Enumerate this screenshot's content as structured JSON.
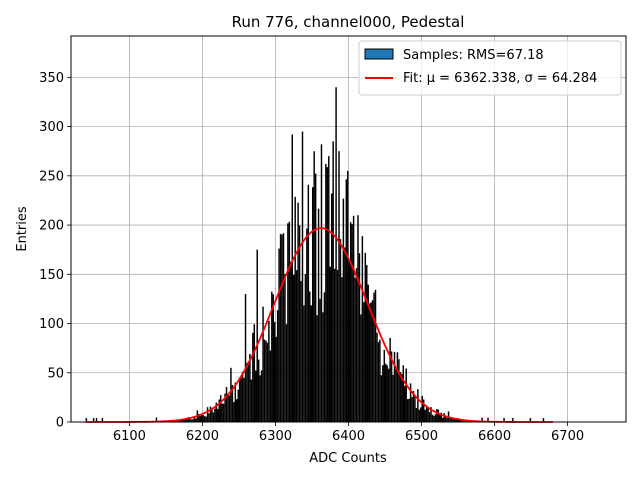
{
  "chart_data": {
    "type": "bar",
    "title": "Run 776, channel000, Pedestal",
    "xlabel": "ADC Counts",
    "ylabel": "Entries",
    "xlim": [
      6020,
      6780
    ],
    "ylim": [
      0,
      392
    ],
    "xticks": [
      6100,
      6200,
      6300,
      6400,
      6500,
      6600,
      6700
    ],
    "yticks": [
      0,
      50,
      100,
      150,
      200,
      250,
      300,
      350
    ],
    "grid": true,
    "legend_position": "top-right",
    "legend": {
      "samples_label": "Samples: RMS=67.18",
      "fit_label": "Fit: μ = 6362.338, σ = 64.284"
    },
    "histogram": {
      "name": "Samples",
      "bin_width": 2,
      "bin_start": 6040,
      "bin_end": 6680,
      "fill_color": "#000000",
      "rms": 67.18,
      "notable_spikes": [
        {
          "x": 6322,
          "y": 292
        },
        {
          "x": 6336,
          "y": 295
        },
        {
          "x": 6352,
          "y": 275
        },
        {
          "x": 6362,
          "y": 282
        },
        {
          "x": 6368,
          "y": 262
        },
        {
          "x": 6372,
          "y": 270
        },
        {
          "x": 6378,
          "y": 285
        },
        {
          "x": 6382,
          "y": 340
        },
        {
          "x": 6386,
          "y": 275
        },
        {
          "x": 6398,
          "y": 255
        },
        {
          "x": 6274,
          "y": 175
        },
        {
          "x": 6258,
          "y": 130
        },
        {
          "x": 6238,
          "y": 55
        },
        {
          "x": 6412,
          "y": 210
        }
      ]
    },
    "fit": {
      "name": "Fit",
      "type": "gaussian",
      "mu": 6362.338,
      "sigma": 64.284,
      "amplitude": 197,
      "x_range": [
        6040,
        6680
      ],
      "color": "#ff0000"
    },
    "colors": {
      "legend_patch": "#1f77b4",
      "grid": "#b0b0b0",
      "axes": "#000000"
    }
  }
}
